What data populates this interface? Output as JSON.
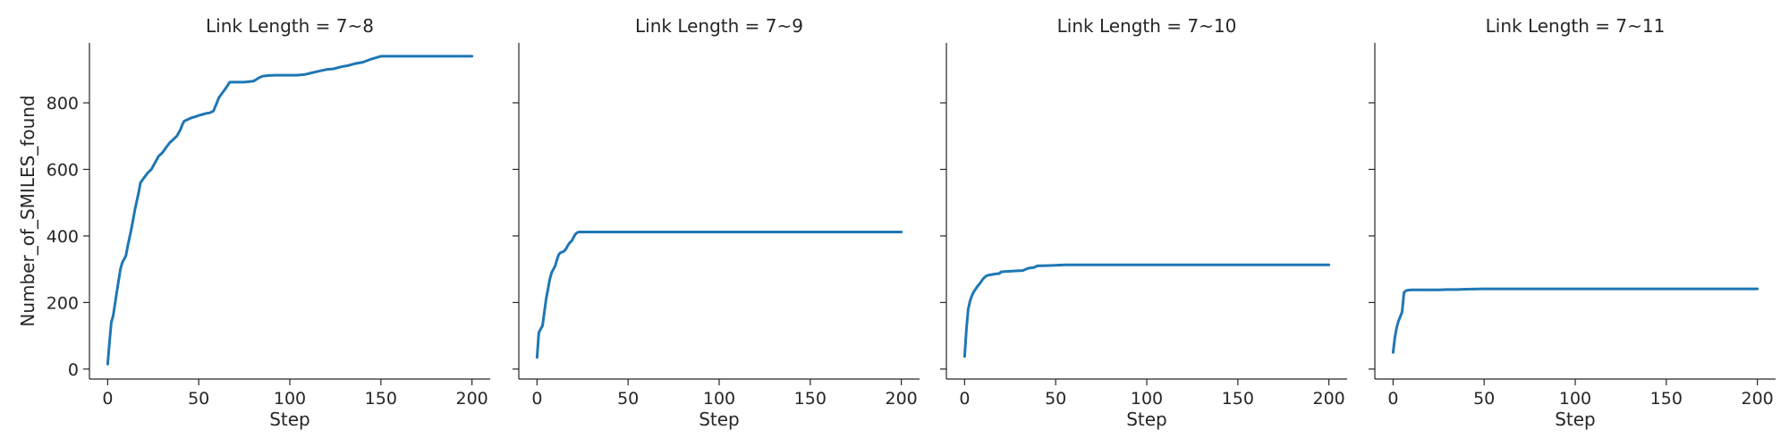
{
  "colors": {
    "series": "#1f77b4",
    "axis": "#262626"
  },
  "chart_data": [
    {
      "type": "line",
      "title": "Link Length = 7~8",
      "xlabel": "Step",
      "ylabel": "Number_of_SMILES_found",
      "xlim": [
        -10,
        210
      ],
      "ylim": [
        -30,
        980
      ],
      "xticks": [
        0,
        50,
        100,
        150,
        200
      ],
      "yticks": [
        0,
        200,
        400,
        600,
        800
      ],
      "grid": false,
      "series": [
        {
          "x": [
            0,
            1,
            2,
            3,
            5,
            7,
            8,
            9,
            10,
            11,
            13,
            15,
            17,
            18,
            20,
            22,
            24,
            26,
            28,
            30,
            32,
            34,
            36,
            38,
            40,
            41,
            42,
            44,
            46,
            48,
            50,
            52,
            54,
            56,
            58,
            60,
            61,
            63,
            65,
            67,
            69,
            72,
            75,
            80,
            83,
            85,
            88,
            92,
            96,
            100,
            104,
            108,
            112,
            116,
            120,
            124,
            128,
            132,
            136,
            140,
            144,
            150,
            160,
            180,
            200
          ],
          "values": [
            15,
            80,
            140,
            160,
            230,
            300,
            320,
            330,
            340,
            370,
            420,
            480,
            530,
            560,
            575,
            590,
            600,
            620,
            640,
            650,
            665,
            680,
            690,
            700,
            720,
            735,
            745,
            750,
            755,
            758,
            762,
            765,
            768,
            770,
            775,
            800,
            815,
            830,
            845,
            862,
            862,
            862,
            862,
            865,
            875,
            880,
            882,
            883,
            883,
            883,
            883,
            885,
            890,
            895,
            900,
            902,
            908,
            912,
            918,
            922,
            930,
            940,
            940,
            940,
            940
          ]
        }
      ]
    },
    {
      "type": "line",
      "title": "Link Length = 7~9",
      "xlabel": "Step",
      "ylabel": "",
      "xlim": [
        -10,
        210
      ],
      "ylim": [
        -30,
        980
      ],
      "xticks": [
        0,
        50,
        100,
        150,
        200
      ],
      "yticks": [
        0,
        200,
        400,
        600,
        800
      ],
      "grid": false,
      "series": [
        {
          "x": [
            0,
            1,
            2,
            3,
            4,
            5,
            6,
            7,
            8,
            9,
            10,
            11,
            12,
            13,
            14,
            15,
            16,
            17,
            18,
            19,
            20,
            21,
            22,
            23,
            24,
            26,
            30,
            50,
            100,
            150,
            200
          ],
          "values": [
            35,
            110,
            120,
            130,
            170,
            210,
            240,
            270,
            290,
            300,
            310,
            330,
            345,
            350,
            352,
            355,
            362,
            372,
            380,
            385,
            395,
            405,
            410,
            412,
            412,
            412,
            412,
            412,
            412,
            412,
            412
          ]
        }
      ]
    },
    {
      "type": "line",
      "title": "Link Length = 7~10",
      "xlabel": "Step",
      "ylabel": "",
      "xlim": [
        -10,
        210
      ],
      "ylim": [
        -30,
        980
      ],
      "xticks": [
        0,
        50,
        100,
        150,
        200
      ],
      "yticks": [
        0,
        200,
        400,
        600,
        800
      ],
      "grid": false,
      "series": [
        {
          "x": [
            0,
            1,
            2,
            3,
            4,
            5,
            6,
            7,
            8,
            9,
            10,
            11,
            12,
            13,
            15,
            17,
            19,
            20,
            22,
            25,
            28,
            32,
            35,
            38,
            40,
            45,
            50,
            55,
            60,
            100,
            150,
            200
          ],
          "values": [
            38,
            120,
            180,
            205,
            220,
            232,
            240,
            248,
            255,
            262,
            270,
            276,
            280,
            282,
            284,
            286,
            287,
            292,
            293,
            294,
            295,
            296,
            303,
            305,
            310,
            311,
            312,
            313,
            313,
            313,
            313,
            313
          ]
        }
      ]
    },
    {
      "type": "line",
      "title": "Link Length = 7~11",
      "xlabel": "Step",
      "ylabel": "",
      "xlim": [
        -10,
        210
      ],
      "ylim": [
        -30,
        980
      ],
      "xticks": [
        0,
        50,
        100,
        150,
        200
      ],
      "yticks": [
        0,
        200,
        400,
        600,
        800
      ],
      "grid": false,
      "series": [
        {
          "x": [
            0,
            1,
            2,
            3,
            4,
            5,
            6,
            7,
            8,
            10,
            15,
            20,
            25,
            30,
            35,
            40,
            50,
            100,
            150,
            200
          ],
          "values": [
            50,
            95,
            125,
            145,
            158,
            172,
            230,
            235,
            237,
            238,
            238,
            238,
            238,
            239,
            239,
            240,
            241,
            241,
            241,
            241
          ]
        }
      ]
    }
  ]
}
